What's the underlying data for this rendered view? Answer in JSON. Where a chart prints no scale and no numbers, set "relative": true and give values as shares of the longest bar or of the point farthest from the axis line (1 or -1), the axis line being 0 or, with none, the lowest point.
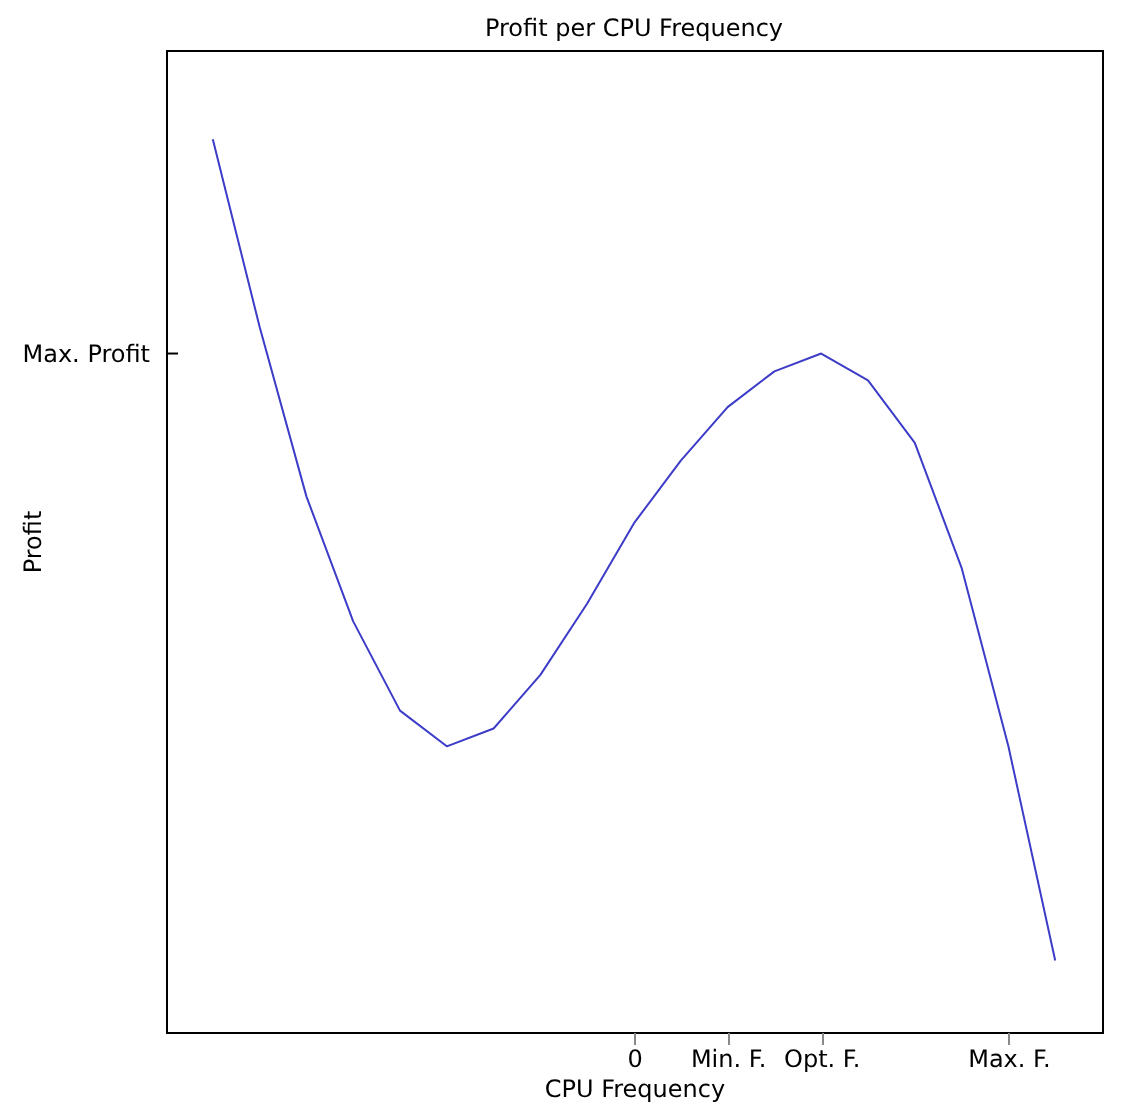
{
  "chart_data": {
    "type": "line",
    "title": "Profit per CPU Frequency",
    "xlabel": "CPU Frequency",
    "ylabel": "Profit",
    "relative": true,
    "categories": [
      null,
      null,
      null,
      null,
      null,
      null,
      null,
      null,
      null,
      "0",
      null,
      "Min. F.",
      null,
      "Opt. F.",
      null,
      null,
      null,
      "Max. F.",
      null
    ],
    "series": [
      {
        "color": "#3c3cc8",
        "values": [
          1.0,
          0.79,
          0.6,
          0.46,
          0.36,
          0.32,
          0.34,
          0.4,
          0.48,
          0.57,
          0.64,
          0.7,
          0.74,
          0.76,
          0.73,
          0.66,
          0.52,
          0.32,
          0.08
        ]
      }
    ],
    "annotations": [
      "Max. Profit"
    ],
    "grid": false,
    "marker": "none",
    "line_style": "solid"
  }
}
